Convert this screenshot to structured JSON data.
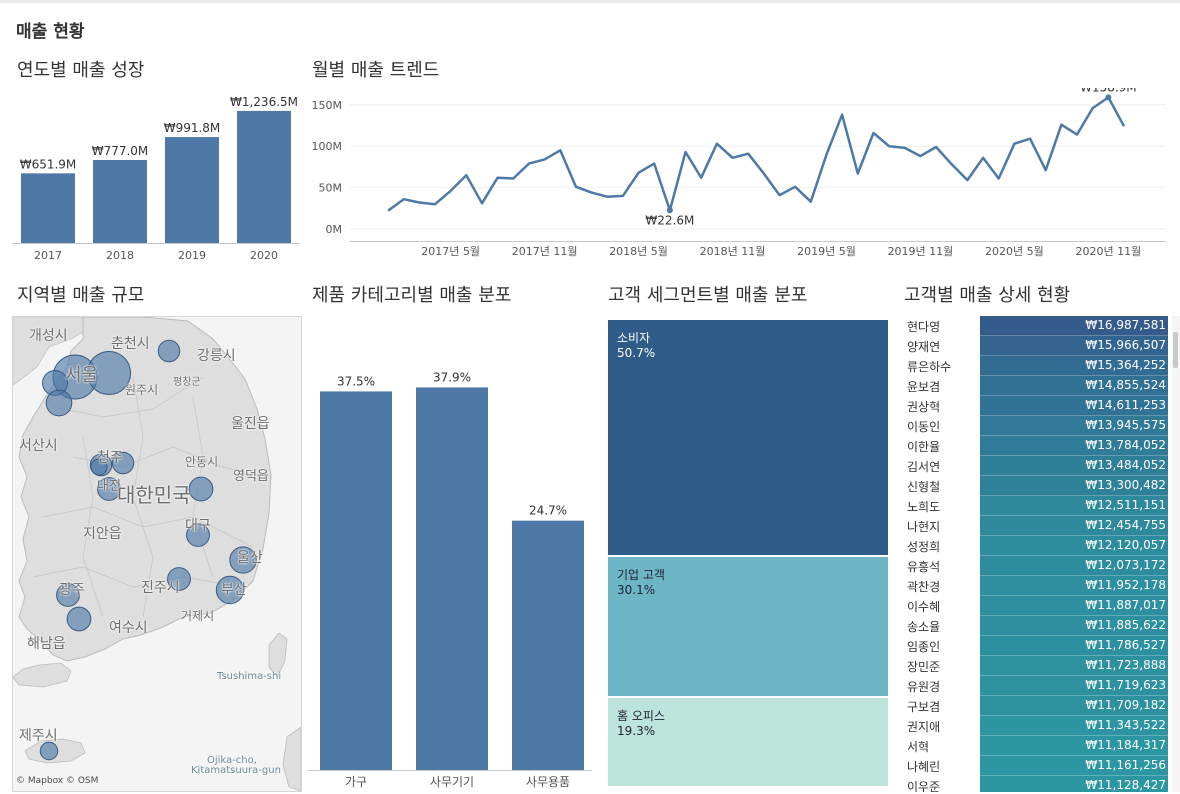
{
  "dashboard": {
    "title": "매출 현황"
  },
  "panels": {
    "yearly": "연도별 매출 성장",
    "monthly": "월별 매출 트렌드",
    "region": "지역별 매출 규모",
    "category": "제품 카테고리별 매출 분포",
    "segment": "고객 세그먼트별 매출 분포",
    "customer": "고객별 매출 상세 현황"
  },
  "colors": {
    "bar": "#4e79a7",
    "line": "#4e79a7",
    "consumer": "#2e5b87",
    "corporate": "#6db6c6",
    "home_office": "#bde4da"
  },
  "chart_data": [
    {
      "type": "bar",
      "id": "yearly",
      "categories": [
        "2017",
        "2018",
        "2019",
        "2020"
      ],
      "values": [
        651.9,
        777.0,
        991.8,
        1236.5
      ],
      "data_labels": [
        "₩651.9M",
        "₩777.0M",
        "₩991.8M",
        "₩1,236.5M"
      ],
      "ylim": [
        0,
        1320
      ]
    },
    {
      "type": "line",
      "id": "monthly",
      "x": [
        "2017-01",
        "2017-02",
        "2017-03",
        "2017-04",
        "2017-05",
        "2017-06",
        "2017-07",
        "2017-08",
        "2017-09",
        "2017-10",
        "2017-11",
        "2017-12",
        "2018-01",
        "2018-02",
        "2018-03",
        "2018-04",
        "2018-05",
        "2018-06",
        "2018-07",
        "2018-08",
        "2018-09",
        "2018-10",
        "2018-11",
        "2018-12",
        "2019-01",
        "2019-02",
        "2019-03",
        "2019-04",
        "2019-05",
        "2019-06",
        "2019-07",
        "2019-08",
        "2019-09",
        "2019-10",
        "2019-11",
        "2019-12",
        "2020-01",
        "2020-02",
        "2020-03",
        "2020-04",
        "2020-05",
        "2020-06",
        "2020-07",
        "2020-08",
        "2020-09",
        "2020-10",
        "2020-11",
        "2020-12"
      ],
      "values": [
        22,
        36,
        32,
        30,
        46,
        65,
        31,
        62,
        61,
        79,
        84,
        95,
        51,
        44,
        39,
        40,
        68,
        79,
        22.6,
        93,
        62,
        103,
        86,
        91,
        67,
        41,
        51,
        33,
        90,
        138,
        67,
        116,
        100,
        98,
        88,
        99,
        78,
        59,
        86,
        61,
        103,
        109,
        71,
        126,
        114,
        146,
        158.9,
        124
      ],
      "ylim": [
        0,
        170
      ],
      "y_ticks": [
        "0M",
        "50M",
        "100M",
        "150M"
      ],
      "y_tick_values": [
        0,
        50,
        100,
        150
      ],
      "x_ticks": [
        "2017년 5월",
        "2017년 11월",
        "2018년 5월",
        "2018년 11월",
        "2019년 5월",
        "2019년 11월",
        "2020년 5월",
        "2020년 11월"
      ],
      "x_tick_index": [
        4,
        10,
        16,
        22,
        28,
        34,
        40,
        46
      ],
      "annotations": [
        {
          "index": 18,
          "label": "₩22.6M"
        },
        {
          "index": 46,
          "label": "₩158.9M"
        }
      ]
    },
    {
      "type": "bar",
      "id": "category",
      "categories": [
        "가구",
        "사무기기",
        "사무용품"
      ],
      "values": [
        37.5,
        37.9,
        24.7
      ],
      "data_labels": [
        "37.5%",
        "37.9%",
        "24.7%"
      ],
      "ylim": [
        0,
        42
      ]
    },
    {
      "type": "treemap",
      "id": "segment",
      "categories": [
        "소비자",
        "기업 고객",
        "홈 오피스"
      ],
      "values": [
        50.7,
        30.1,
        19.3
      ],
      "data_labels": [
        "50.7%",
        "30.1%",
        "19.3%"
      ]
    },
    {
      "type": "table",
      "id": "customer",
      "rows": [
        {
          "name": "현다영",
          "value": "₩16,987,581",
          "amount": 16987581
        },
        {
          "name": "양재연",
          "value": "₩15,966,507",
          "amount": 15966507
        },
        {
          "name": "류은하수",
          "value": "₩15,364,252",
          "amount": 15364252
        },
        {
          "name": "윤보겸",
          "value": "₩14,855,524",
          "amount": 14855524
        },
        {
          "name": "권상혁",
          "value": "₩14,611,253",
          "amount": 14611253
        },
        {
          "name": "이동인",
          "value": "₩13,945,575",
          "amount": 13945575
        },
        {
          "name": "이한율",
          "value": "₩13,784,052",
          "amount": 13784052
        },
        {
          "name": "김서연",
          "value": "₩13,484,052",
          "amount": 13484052
        },
        {
          "name": "신형철",
          "value": "₩13,300,482",
          "amount": 13300482
        },
        {
          "name": "노희도",
          "value": "₩12,511,151",
          "amount": 12511151
        },
        {
          "name": "나현지",
          "value": "₩12,454,755",
          "amount": 12454755
        },
        {
          "name": "성정희",
          "value": "₩12,120,057",
          "amount": 12120057
        },
        {
          "name": "유흥석",
          "value": "₩12,073,172",
          "amount": 12073172
        },
        {
          "name": "곽찬경",
          "value": "₩11,952,178",
          "amount": 11952178
        },
        {
          "name": "이수혜",
          "value": "₩11,887,017",
          "amount": 11887017
        },
        {
          "name": "송소율",
          "value": "₩11,885,622",
          "amount": 11885622
        },
        {
          "name": "임종인",
          "value": "₩11,786,527",
          "amount": 11786527
        },
        {
          "name": "장민준",
          "value": "₩11,723,888",
          "amount": 11723888
        },
        {
          "name": "유원경",
          "value": "₩11,719,623",
          "amount": 11719623
        },
        {
          "name": "구보겸",
          "value": "₩11,709,182",
          "amount": 11709182
        },
        {
          "name": "권지애",
          "value": "₩11,343,522",
          "amount": 11343522
        },
        {
          "name": "서혁",
          "value": "₩11,184,317",
          "amount": 11184317
        },
        {
          "name": "나혜린",
          "value": "₩11,161,256",
          "amount": 11161256
        },
        {
          "name": "이우준",
          "value": "₩11,128,427",
          "amount": 11128427
        }
      ]
    }
  ],
  "map": {
    "labels": [
      "개성시",
      "춘천시",
      "강릉시",
      "서울",
      "원주시",
      "평창군",
      "울진읍",
      "서산시",
      "청주",
      "안동시",
      "영덕읍",
      "대전",
      "대한민국",
      "대구",
      "지안읍",
      "울산",
      "광주",
      "진주시",
      "부산",
      "거제시",
      "여수시",
      "해남읍",
      "Tsushima-shi",
      "제주시",
      "Ojika-cho,",
      "Kitamatsuura-gun"
    ],
    "attribution": "© Mapbox © OSM",
    "bubbles": [
      {
        "name": "서울",
        "sales": 100
      },
      {
        "name": "경기",
        "sales": 95
      },
      {
        "name": "인천",
        "sales": 22
      },
      {
        "name": "강원",
        "sales": 14
      },
      {
        "name": "충남",
        "sales": 24
      },
      {
        "name": "세종",
        "sales": 14
      },
      {
        "name": "대전",
        "sales": 14
      },
      {
        "name": "충북",
        "sales": 5
      },
      {
        "name": "경북",
        "sales": 19
      },
      {
        "name": "전북",
        "sales": 17
      },
      {
        "name": "대구",
        "sales": 17
      },
      {
        "name": "울산",
        "sales": 26
      },
      {
        "name": "광주",
        "sales": 17
      },
      {
        "name": "경남",
        "sales": 17
      },
      {
        "name": "부산",
        "sales": 29
      },
      {
        "name": "전남",
        "sales": 19
      },
      {
        "name": "제주",
        "sales": 7
      }
    ]
  }
}
